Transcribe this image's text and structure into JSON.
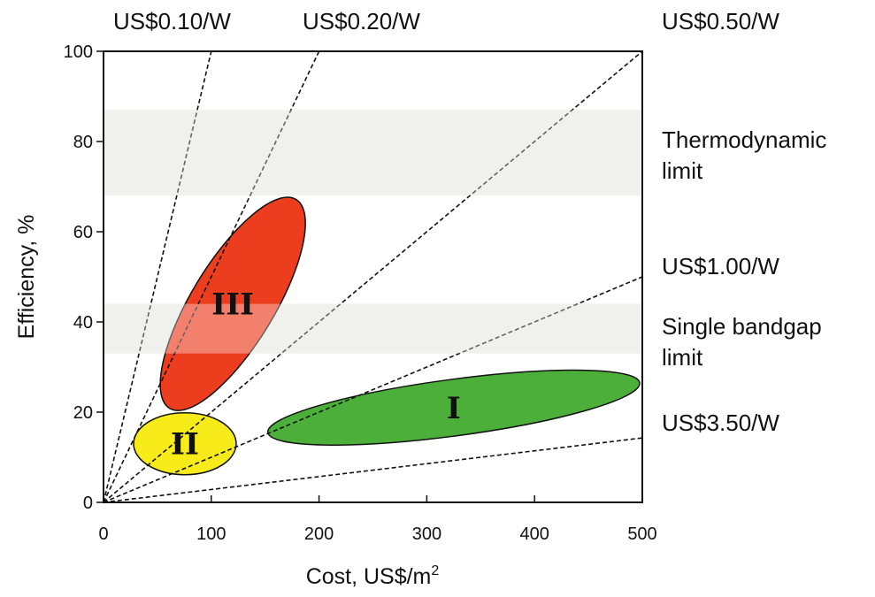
{
  "chart_data": {
    "type": "scatter",
    "title": "",
    "xlabel": "Cost, US$/m",
    "xlabel_superscript": "2",
    "ylabel": "Efficiency, %",
    "xlim": [
      0,
      500
    ],
    "ylim": [
      0,
      100
    ],
    "x_ticks": [
      {
        "value": 0,
        "label": "0"
      },
      {
        "value": 100,
        "label": "100"
      },
      {
        "value": 200,
        "label": "200"
      },
      {
        "value": 300,
        "label": "300"
      },
      {
        "value": 400,
        "label": "400"
      },
      {
        "value": 500,
        "label": "500"
      }
    ],
    "y_ticks": [
      {
        "value": 0,
        "label": "0"
      },
      {
        "value": 20,
        "label": "20"
      },
      {
        "value": 40,
        "label": "40"
      },
      {
        "value": 60,
        "label": "60"
      },
      {
        "value": 80,
        "label": "80"
      },
      {
        "value": 100,
        "label": "100"
      }
    ],
    "cost_per_watt_lines": [
      {
        "label": "US$0.10/W",
        "rate": 0.1,
        "label_position": "top"
      },
      {
        "label": "US$0.20/W",
        "rate": 0.2,
        "label_position": "top"
      },
      {
        "label": "US$0.50/W",
        "rate": 0.5,
        "label_position": "top-right"
      },
      {
        "label": "US$1.00/W",
        "rate": 1.0,
        "label_position": "right"
      },
      {
        "label": "US$3.50/W",
        "rate": 3.5,
        "label_position": "right"
      }
    ],
    "bands": [
      {
        "label_lines": [
          "Thermodynamic",
          "limit"
        ],
        "y_range": [
          68,
          87
        ],
        "color": "#e8e8e4"
      },
      {
        "label_lines": [
          "Single bandgap",
          "limit"
        ],
        "y_range": [
          33,
          44
        ],
        "color": "#e8e8e4"
      }
    ],
    "regions": [
      {
        "label": "I",
        "x_range": [
          150,
          500
        ],
        "y_range": [
          12,
          30
        ],
        "color": "#4caf3a"
      },
      {
        "label": "II",
        "x_range": [
          28,
          123
        ],
        "y_range": [
          6,
          20
        ],
        "color": "#f7ec1a"
      },
      {
        "label": "III",
        "x_range": [
          38,
          202
        ],
        "y_range": [
          20,
          68
        ],
        "color": "#ec3d1e"
      }
    ]
  }
}
